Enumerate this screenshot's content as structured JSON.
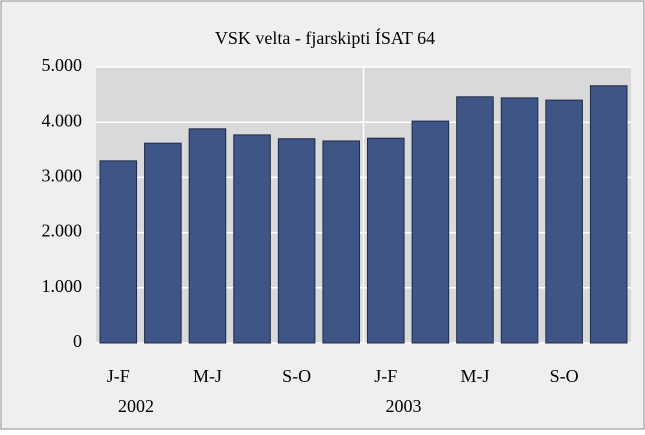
{
  "chart_data": {
    "type": "bar",
    "title": "VSK velta - fjarskipti  ÍSAT 64",
    "categories": [
      "J-F",
      null,
      "M-J",
      null,
      "S-O",
      null,
      "J-F",
      null,
      "M-J",
      null,
      "S-O",
      null
    ],
    "years": [
      "2002",
      "2003"
    ],
    "values": [
      3300,
      3620,
      3880,
      3770,
      3700,
      3660,
      3710,
      4020,
      4460,
      4440,
      4400,
      4660
    ],
    "color": "#3f5586",
    "ylim": [
      0,
      5000
    ],
    "yticks": [
      0,
      {
        "value": 1000,
        "label": "1.000"
      },
      {
        "value": 2000,
        "label": "2.000"
      },
      {
        "value": 3000,
        "label": "3.000"
      },
      {
        "value": 4000,
        "label": "4.000"
      },
      {
        "value": 5000,
        "label": "5.000"
      }
    ],
    "grid": true
  }
}
